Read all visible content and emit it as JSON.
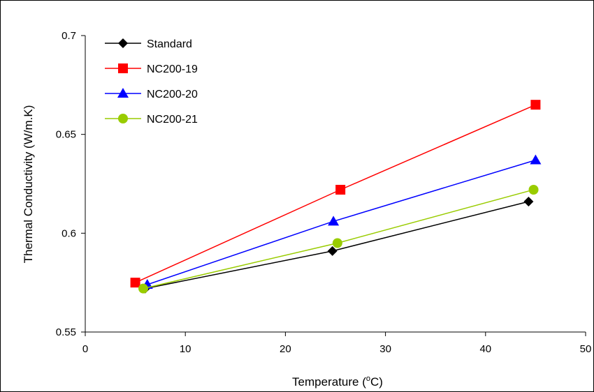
{
  "chart_data": {
    "type": "line",
    "xlabel": "Temperature (",
    "xlabel_sup": "o",
    "xlabel_suffix": "C)",
    "ylabel": "Thermal Conductivity (W/m.K)",
    "xlim": [
      0,
      50
    ],
    "ylim": [
      0.55,
      0.7
    ],
    "x_ticks": [
      "0",
      "10",
      "20",
      "30",
      "40",
      "50"
    ],
    "y_ticks": [
      "0.55",
      "0.6",
      "0.65",
      "0.7"
    ],
    "grid": false,
    "legend_position": "top-left",
    "series": [
      {
        "name": "Standard",
        "color": "#000000",
        "marker": "diamond",
        "x": [
          6,
          24.7,
          44.3
        ],
        "y": [
          0.572,
          0.591,
          0.616
        ]
      },
      {
        "name": "NC200-19",
        "color": "#ff0000",
        "marker": "square",
        "x": [
          5,
          25.5,
          45
        ],
        "y": [
          0.575,
          0.622,
          0.665
        ]
      },
      {
        "name": "NC200-20",
        "color": "#0000ff",
        "marker": "triangle",
        "x": [
          6.2,
          24.8,
          45
        ],
        "y": [
          0.574,
          0.606,
          0.637
        ]
      },
      {
        "name": "NC200-21",
        "color": "#99cc00",
        "marker": "circle",
        "x": [
          5.8,
          25.2,
          44.8
        ],
        "y": [
          0.572,
          0.595,
          0.622
        ]
      }
    ]
  }
}
